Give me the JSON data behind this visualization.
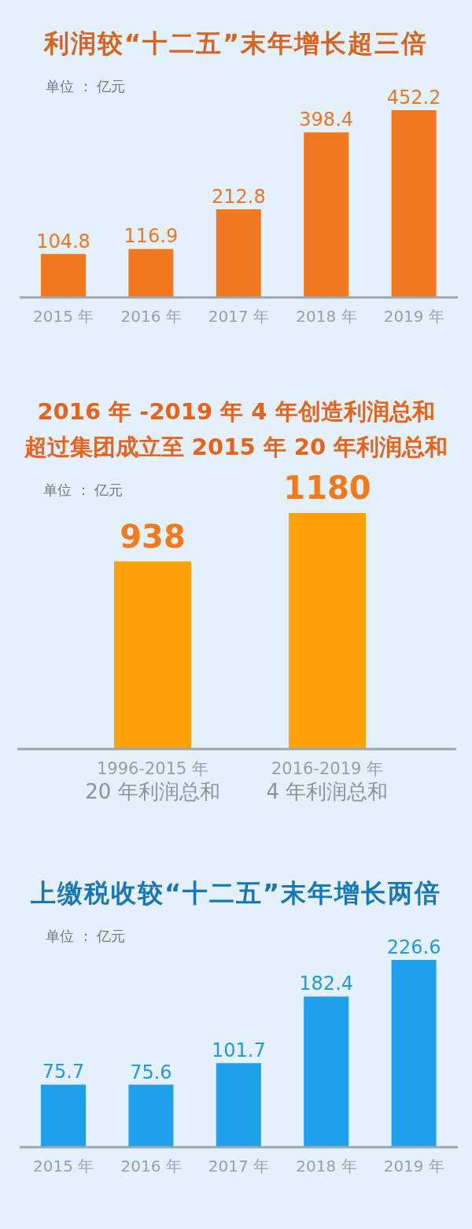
{
  "chart_data": [
    {
      "type": "bar",
      "title": "利润较“十二五”末年增长超三倍",
      "annotations": [
        "单位 ： 亿元"
      ],
      "categories": [
        "2015 年",
        "2016 年",
        "2017 年",
        "2018 年",
        "2019 年"
      ],
      "values": [
        104.8,
        116.9,
        212.8,
        398.4,
        452.2
      ],
      "color": "#f0781e",
      "data_labels": true
    },
    {
      "type": "bar",
      "title": "2016 年 -2019 年 4 年创造利润总和超过集团成立至 2015 年 20 年利润总和",
      "annotations": [
        "单位 ： 亿元"
      ],
      "categories": [
        "1996-2015 年\n20 年利润总和",
        "2016-2019 年\n4 年利润总和"
      ],
      "values": [
        938,
        1180
      ],
      "color": "#ffa20a",
      "data_labels": true
    },
    {
      "type": "bar",
      "title": "上缴税收较“十二五”末年增长两倍",
      "annotations": [
        "单位 ： 亿元"
      ],
      "categories": [
        "2015 年",
        "2016 年",
        "2017 年",
        "2018 年",
        "2019 年"
      ],
      "values": [
        75.7,
        75.6,
        101.7,
        182.4,
        226.6
      ],
      "color": "#1ea0ec",
      "data_labels": true
    }
  ]
}
